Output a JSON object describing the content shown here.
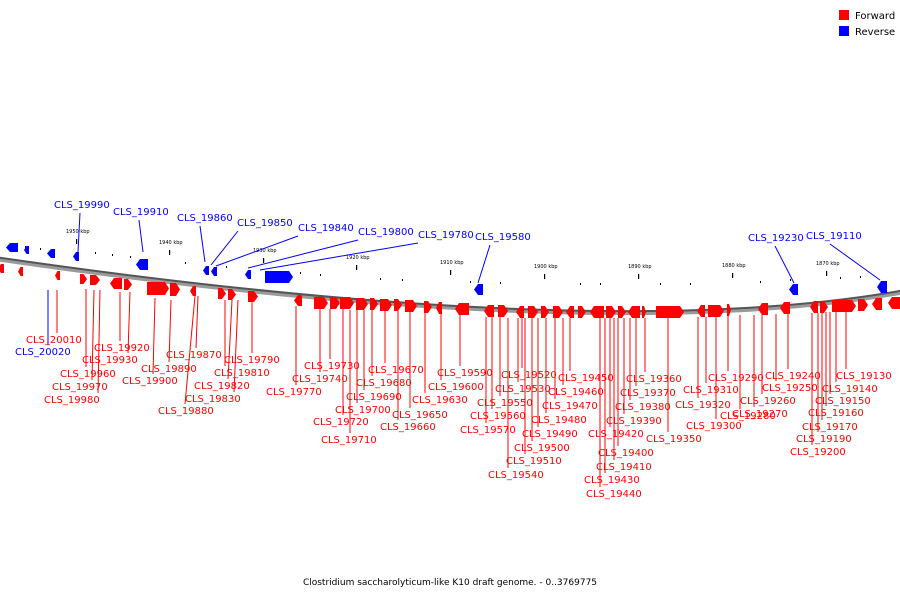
{
  "legend": {
    "forward": {
      "label": "Forward",
      "color": "#ff0000"
    },
    "reverse": {
      "label": "Reverse",
      "color": "#0000ff"
    }
  },
  "caption": "Clostridium saccharolyticum-like K10 draft genome. - 0..3769775",
  "scale_ticks": [
    "1950 kbp",
    "1940 kbp",
    "1930 kbp",
    "1920 kbp",
    "1910 kbp",
    "1900 kbp",
    "1890 kbp",
    "1880 kbp",
    "1870 kbp"
  ],
  "reverse_labels": [
    "CLS_19990",
    "CLS_19910",
    "CLS_19860",
    "CLS_19850",
    "CLS_19840",
    "CLS_19800",
    "CLS_19780",
    "CLS_19580",
    "CLS_19230",
    "CLS_19110",
    "CLS_20020"
  ],
  "forward_labels": [
    "CLS_20010",
    "CLS_19960",
    "CLS_19970",
    "CLS_19980",
    "CLS_19920",
    "CLS_19930",
    "CLS_19900",
    "CLS_19890",
    "CLS_19870",
    "CLS_19880",
    "CLS_19810",
    "CLS_19820",
    "CLS_19830",
    "CLS_19790",
    "CLS_19770",
    "CLS_19740",
    "CLS_19730",
    "CLS_19720",
    "CLS_19710",
    "CLS_19700",
    "CLS_19690",
    "CLS_19680",
    "CLS_19670",
    "CLS_19660",
    "CLS_19650",
    "CLS_19630",
    "CLS_19600",
    "CLS_19590",
    "CLS_19570",
    "CLS_19560",
    "CLS_19550",
    "CLS_19540",
    "CLS_19530",
    "CLS_19520",
    "CLS_19510",
    "CLS_19500",
    "CLS_19490",
    "CLS_19480",
    "CLS_19470",
    "CLS_19460",
    "CLS_19450",
    "CLS_19440",
    "CLS_19430",
    "CLS_19420",
    "CLS_19410",
    "CLS_19400",
    "CLS_19390",
    "CLS_19380",
    "CLS_19370",
    "CLS_19360",
    "CLS_19350",
    "CLS_19320",
    "CLS_19310",
    "CLS_19300",
    "CLS_19290",
    "CLS_19280",
    "CLS_19270",
    "CLS_19260",
    "CLS_19250",
    "CLS_19240",
    "CLS_19200",
    "CLS_19190",
    "CLS_19170",
    "CLS_19160",
    "CLS_19150",
    "CLS_19140",
    "CLS_19130"
  ]
}
